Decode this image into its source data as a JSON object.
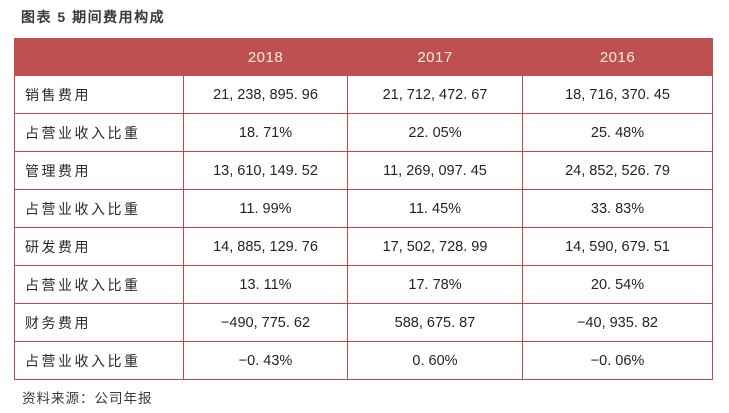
{
  "page": {
    "title": "图表 5 期间费用构成",
    "source_note": "资料来源：公司年报"
  },
  "colors": {
    "header_bg": "#c0504f",
    "header_text": "#f3ede4",
    "grid_border": "#bb4c49",
    "body_text": "#242424",
    "title_text": "#3a3a3a",
    "page_bg": "#ffffff"
  },
  "chart_data": {
    "type": "table",
    "title": "图表 5 期间费用构成",
    "columns": [
      "",
      "2018",
      "2017",
      "2016"
    ],
    "rows": [
      {
        "label": "销售费用",
        "values": [
          "21, 238, 895. 96",
          "21, 712, 472. 67",
          "18, 716, 370. 45"
        ]
      },
      {
        "label": "占营业收入比重",
        "values": [
          "18. 71%",
          "22. 05%",
          "25. 48%"
        ]
      },
      {
        "label": "管理费用",
        "values": [
          "13, 610, 149. 52",
          "11, 269, 097. 45",
          "24, 852, 526. 79"
        ]
      },
      {
        "label": "占营业收入比重",
        "values": [
          "11. 99%",
          "11. 45%",
          "33. 83%"
        ]
      },
      {
        "label": "研发费用",
        "values": [
          "14, 885, 129. 76",
          "17, 502, 728. 99",
          "14, 590, 679. 51"
        ]
      },
      {
        "label": "占营业收入比重",
        "values": [
          "13. 11%",
          "17. 78%",
          "20. 54%"
        ]
      },
      {
        "label": "财务费用",
        "values": [
          "−490, 775. 62",
          "588, 675. 87",
          "−40, 935. 82"
        ]
      },
      {
        "label": "占营业收入比重",
        "values": [
          "−0. 43%",
          "0. 60%",
          "−0. 06%"
        ]
      }
    ],
    "source_note": "资料来源：公司年报"
  }
}
